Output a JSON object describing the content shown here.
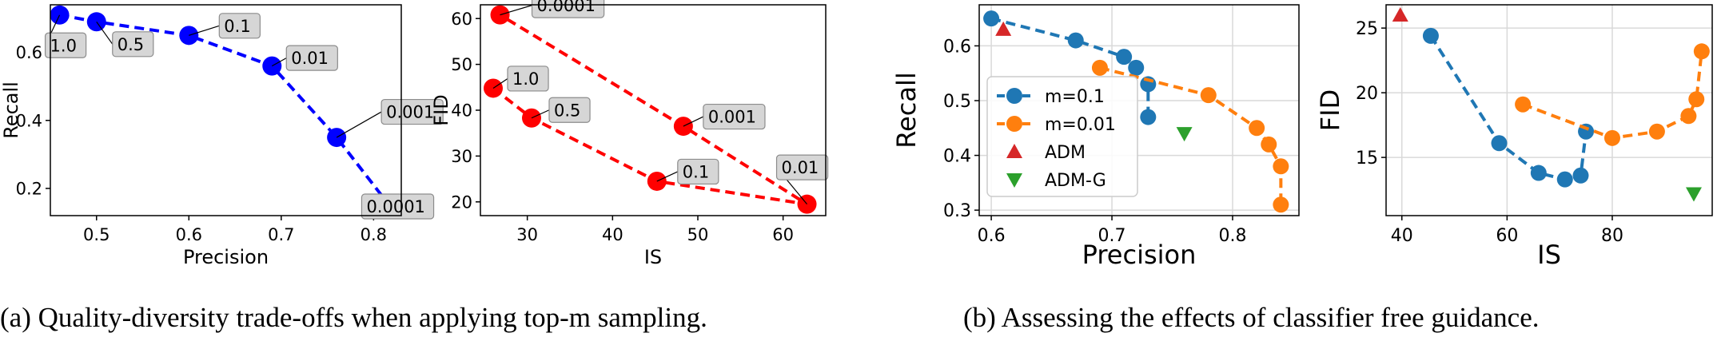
{
  "captions": {
    "a": "(a)  Quality-diversity trade-offs when applying top-m sampling.",
    "b": "(b)  Assessing the effects of classifier free guidance."
  },
  "chart_data": [
    {
      "type": "line",
      "xlabel": "Precision",
      "ylabel": "Recall",
      "xlim": [
        0.45,
        0.83
      ],
      "ylim": [
        0.12,
        0.74
      ],
      "xticks": [
        0.5,
        0.6,
        0.7,
        0.8
      ],
      "yticks": [
        0.2,
        0.4,
        0.6
      ],
      "grid": false,
      "series": [
        {
          "color": "#0000ff",
          "x": [
            0.46,
            0.5,
            0.6,
            0.69,
            0.76,
            0.82
          ],
          "y": [
            0.71,
            0.69,
            0.65,
            0.56,
            0.35,
            0.14
          ]
        }
      ],
      "annotations": [
        {
          "text": "1.0",
          "x": 0.46,
          "y": 0.71
        },
        {
          "text": "0.5",
          "x": 0.5,
          "y": 0.69
        },
        {
          "text": "0.1",
          "x": 0.6,
          "y": 0.65
        },
        {
          "text": "0.01",
          "x": 0.69,
          "y": 0.56
        },
        {
          "text": "0.001",
          "x": 0.76,
          "y": 0.35
        },
        {
          "text": "0.0001",
          "x": 0.82,
          "y": 0.14
        }
      ]
    },
    {
      "type": "line",
      "xlabel": "IS",
      "ylabel": "FID",
      "xlim": [
        24.5,
        65
      ],
      "ylim": [
        17,
        63
      ],
      "xticks": [
        30,
        40,
        50,
        60
      ],
      "yticks": [
        20,
        30,
        40,
        50,
        60
      ],
      "grid": false,
      "series": [
        {
          "color": "#ff0000",
          "x": [
            26.0,
            30.5,
            45.2,
            62.8,
            48.3,
            26.8
          ],
          "y": [
            44.8,
            38.3,
            24.5,
            19.5,
            36.5,
            60.8
          ]
        }
      ],
      "annotations": [
        {
          "text": "1.0",
          "x": 26.0,
          "y": 44.8
        },
        {
          "text": "0.5",
          "x": 30.5,
          "y": 38.3
        },
        {
          "text": "0.1",
          "x": 45.2,
          "y": 24.5
        },
        {
          "text": "0.01",
          "x": 62.8,
          "y": 19.5
        },
        {
          "text": "0.001",
          "x": 48.3,
          "y": 36.5
        },
        {
          "text": "0.0001",
          "x": 26.8,
          "y": 60.8
        }
      ]
    },
    {
      "type": "line",
      "xlabel": "Precision",
      "ylabel": "Recall",
      "xlim": [
        0.59,
        0.855
      ],
      "ylim": [
        0.29,
        0.675
      ],
      "xticks": [
        0.6,
        0.7,
        0.8
      ],
      "yticks": [
        0.3,
        0.4,
        0.5,
        0.6
      ],
      "grid": true,
      "legend": "center-left",
      "series": [
        {
          "name": "m=0.1",
          "color": "#1f77b4",
          "marker": "circle",
          "x": [
            0.6,
            0.67,
            0.71,
            0.72,
            0.73,
            0.73
          ],
          "y": [
            0.65,
            0.61,
            0.58,
            0.56,
            0.53,
            0.47
          ]
        },
        {
          "name": "m=0.01",
          "color": "#ff7f0e",
          "marker": "circle",
          "x": [
            0.69,
            0.78,
            0.82,
            0.83,
            0.84,
            0.84
          ],
          "y": [
            0.56,
            0.51,
            0.45,
            0.42,
            0.38,
            0.31
          ]
        },
        {
          "name": "ADM",
          "color": "#d62728",
          "marker": "triangle-up",
          "x": [
            0.61
          ],
          "y": [
            0.63
          ]
        },
        {
          "name": "ADM-G",
          "color": "#2ca02c",
          "marker": "triangle-down",
          "x": [
            0.76
          ],
          "y": [
            0.44
          ]
        }
      ]
    },
    {
      "type": "line",
      "xlabel": "IS",
      "ylabel": "FID",
      "xlim": [
        37,
        99
      ],
      "ylim": [
        10.5,
        26.8
      ],
      "xticks": [
        40,
        60,
        80
      ],
      "yticks": [
        15,
        20,
        25
      ],
      "grid": true,
      "series": [
        {
          "name": "m=0.1",
          "color": "#1f77b4",
          "marker": "circle",
          "x": [
            45.5,
            58.5,
            66.0,
            71.0,
            74.0,
            75.0
          ],
          "y": [
            24.4,
            16.1,
            13.8,
            13.3,
            13.6,
            17.0
          ]
        },
        {
          "name": "m=0.01",
          "color": "#ff7f0e",
          "marker": "circle",
          "x": [
            63.0,
            80.0,
            88.5,
            94.5,
            96.0,
            97.0
          ],
          "y": [
            19.1,
            16.5,
            17.0,
            18.2,
            19.5,
            23.2
          ]
        },
        {
          "name": "ADM",
          "color": "#d62728",
          "marker": "triangle-up",
          "x": [
            39.7
          ],
          "y": [
            26.0
          ]
        },
        {
          "name": "ADM-G",
          "color": "#2ca02c",
          "marker": "triangle-down",
          "x": [
            95.5
          ],
          "y": [
            12.2
          ]
        }
      ]
    }
  ]
}
